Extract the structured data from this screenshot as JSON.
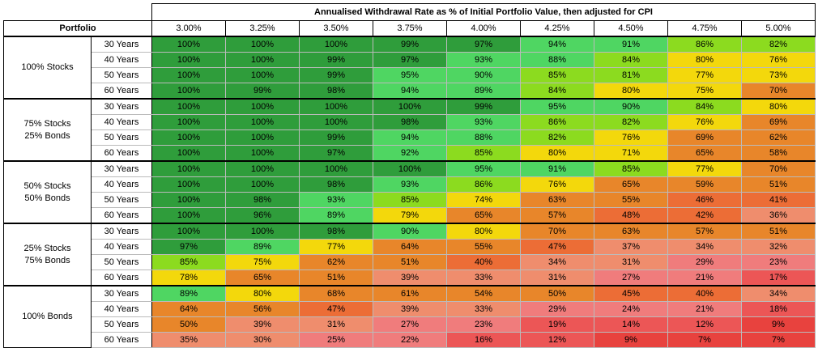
{
  "header": {
    "title": "Annualised Withdrawal Rate as % of Initial Portfolio Value, then adjusted for CPI",
    "portfolio": "Portfolio",
    "rates": [
      "3.00%",
      "3.25%",
      "3.50%",
      "3.75%",
      "4.00%",
      "4.25%",
      "4.50%",
      "4.75%",
      "5.00%"
    ]
  },
  "groups": [
    {
      "label": [
        "100% Stocks"
      ],
      "rows": [
        {
          "years": "30 Years",
          "cells": [
            "100%",
            "100%",
            "100%",
            "99%",
            "97%",
            "94%",
            "91%",
            "86%",
            "82%"
          ]
        },
        {
          "years": "40 Years",
          "cells": [
            "100%",
            "100%",
            "99%",
            "97%",
            "93%",
            "88%",
            "84%",
            "80%",
            "76%"
          ]
        },
        {
          "years": "50 Years",
          "cells": [
            "100%",
            "100%",
            "99%",
            "95%",
            "90%",
            "85%",
            "81%",
            "77%",
            "73%"
          ]
        },
        {
          "years": "60 Years",
          "cells": [
            "100%",
            "99%",
            "98%",
            "94%",
            "89%",
            "84%",
            "80%",
            "75%",
            "70%"
          ]
        }
      ]
    },
    {
      "label": [
        "75% Stocks",
        "25% Bonds"
      ],
      "rows": [
        {
          "years": "30 Years",
          "cells": [
            "100%",
            "100%",
            "100%",
            "100%",
            "99%",
            "95%",
            "90%",
            "84%",
            "80%"
          ]
        },
        {
          "years": "40 Years",
          "cells": [
            "100%",
            "100%",
            "100%",
            "98%",
            "93%",
            "86%",
            "82%",
            "76%",
            "69%"
          ]
        },
        {
          "years": "50 Years",
          "cells": [
            "100%",
            "100%",
            "99%",
            "94%",
            "88%",
            "82%",
            "76%",
            "69%",
            "62%"
          ]
        },
        {
          "years": "60 Years",
          "cells": [
            "100%",
            "100%",
            "97%",
            "92%",
            "85%",
            "80%",
            "71%",
            "65%",
            "58%"
          ]
        }
      ]
    },
    {
      "label": [
        "50% Stocks",
        "50% Bonds"
      ],
      "rows": [
        {
          "years": "30 Years",
          "cells": [
            "100%",
            "100%",
            "100%",
            "100%",
            "95%",
            "91%",
            "85%",
            "77%",
            "70%"
          ]
        },
        {
          "years": "40 Years",
          "cells": [
            "100%",
            "100%",
            "98%",
            "93%",
            "86%",
            "76%",
            "65%",
            "59%",
            "51%"
          ]
        },
        {
          "years": "50 Years",
          "cells": [
            "100%",
            "98%",
            "93%",
            "85%",
            "74%",
            "63%",
            "55%",
            "46%",
            "41%"
          ]
        },
        {
          "years": "60 Years",
          "cells": [
            "100%",
            "96%",
            "89%",
            "79%",
            "65%",
            "57%",
            "48%",
            "42%",
            "36%"
          ]
        }
      ]
    },
    {
      "label": [
        "25% Stocks",
        "75% Bonds"
      ],
      "rows": [
        {
          "years": "30 Years",
          "cells": [
            "100%",
            "100%",
            "98%",
            "90%",
            "80%",
            "70%",
            "63%",
            "57%",
            "51%"
          ]
        },
        {
          "years": "40 Years",
          "cells": [
            "97%",
            "89%",
            "77%",
            "64%",
            "55%",
            "47%",
            "37%",
            "34%",
            "32%"
          ]
        },
        {
          "years": "50 Years",
          "cells": [
            "85%",
            "75%",
            "62%",
            "51%",
            "40%",
            "34%",
            "31%",
            "29%",
            "23%"
          ]
        },
        {
          "years": "60 Years",
          "cells": [
            "78%",
            "65%",
            "51%",
            "39%",
            "33%",
            "31%",
            "27%",
            "21%",
            "17%"
          ]
        }
      ]
    },
    {
      "label": [
        "100% Bonds"
      ],
      "rows": [
        {
          "years": "30 Years",
          "cells": [
            "89%",
            "80%",
            "68%",
            "61%",
            "54%",
            "50%",
            "45%",
            "40%",
            "34%"
          ]
        },
        {
          "years": "40 Years",
          "cells": [
            "64%",
            "56%",
            "47%",
            "39%",
            "33%",
            "29%",
            "24%",
            "21%",
            "18%"
          ]
        },
        {
          "years": "50 Years",
          "cells": [
            "50%",
            "39%",
            "31%",
            "27%",
            "23%",
            "19%",
            "14%",
            "12%",
            "9%"
          ]
        },
        {
          "years": "60 Years",
          "cells": [
            "35%",
            "30%",
            "25%",
            "22%",
            "16%",
            "12%",
            "9%",
            "7%",
            "7%"
          ]
        }
      ]
    }
  ]
}
